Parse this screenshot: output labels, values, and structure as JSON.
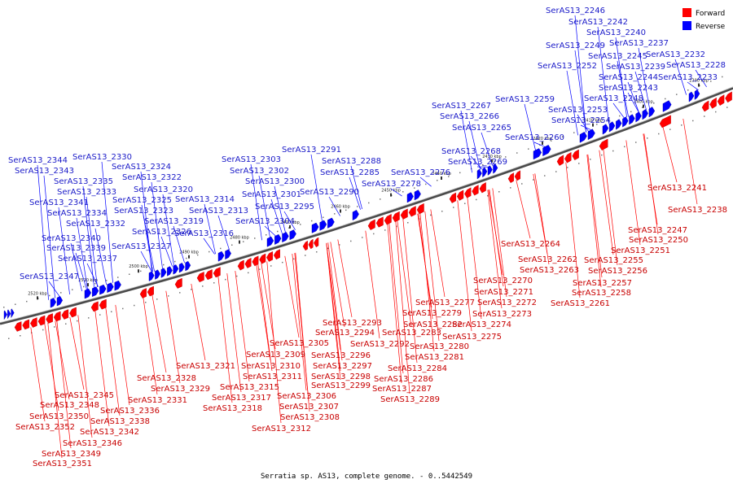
{
  "caption": "Serratia sp. AS13, complete genome. - 0..5442549",
  "legend": [
    {
      "label": "Forward",
      "color": "#ff0000"
    },
    {
      "label": "Reverse",
      "color": "#0000ff"
    }
  ],
  "ticks": [
    "2520 kbp",
    "2510 kbp",
    "2500 kbp",
    "2490 kbp",
    "2480 kbp",
    "2470 kbp",
    "2460 kbp",
    "2450 kbp",
    "2440 kbp",
    "2430 kbp",
    "2420 kbp",
    "2410 kbp",
    "2400 kbp",
    "2390 kbp"
  ],
  "reverse_labels": [
    "SerAS13_2246",
    "SerAS13_2242",
    "SerAS13_2240",
    "SerAS13_2237",
    "SerAS13_2249",
    "SerAS13_2232",
    "SerAS13_2245",
    "SerAS13_2252",
    "SerAS13_2239",
    "SerAS13_2228",
    "SerAS13_2244",
    "SerAS13_2233",
    "SerAS13_2243",
    "SerAS13_2259",
    "SerAS13_2248",
    "SerAS13_2267",
    "SerAS13_2253",
    "SerAS13_2266",
    "SerAS13_2254",
    "SerAS13_2265",
    "SerAS13_2260",
    "SerAS13_2268",
    "SerAS13_2269",
    "SerAS13_2276",
    "SerAS13_2278",
    "SerAS13_2291",
    "SerAS13_2288",
    "SerAS13_2285",
    "SerAS13_2290",
    "SerAS13_2303",
    "SerAS13_2302",
    "SerAS13_2300",
    "SerAS13_2301",
    "SerAS13_2295",
    "SerAS13_2304",
    "SerAS13_2330",
    "SerAS13_2324",
    "SerAS13_2322",
    "SerAS13_2320",
    "SerAS13_2325",
    "SerAS13_2314",
    "SerAS13_2323",
    "SerAS13_2313",
    "SerAS13_2319",
    "SerAS13_2326",
    "SerAS13_2316",
    "SerAS13_2327",
    "SerAS13_2344",
    "SerAS13_2343",
    "SerAS13_2335",
    "SerAS13_2333",
    "SerAS13_2341",
    "SerAS13_2334",
    "SerAS13_2332",
    "SerAS13_2340",
    "SerAS13_2339",
    "SerAS13_2337",
    "SerAS13_2347"
  ],
  "forward_labels": [
    "SerAS13_2241",
    "SerAS13_2238",
    "SerAS13_2247",
    "SerAS13_2250",
    "SerAS13_2251",
    "SerAS13_2264",
    "SerAS13_2255",
    "SerAS13_2262",
    "SerAS13_2256",
    "SerAS13_2263",
    "SerAS13_2257",
    "SerAS13_2258",
    "SerAS13_2261",
    "SerAS13_2270",
    "SerAS13_2271",
    "SerAS13_2272",
    "SerAS13_2277",
    "SerAS13_2273",
    "SerAS13_2279",
    "SerAS13_2274",
    "SerAS13_2282",
    "SerAS13_2275",
    "SerAS13_2293",
    "SerAS13_2283",
    "SerAS13_2280",
    "SerAS13_2294",
    "SerAS13_2281",
    "SerAS13_2292",
    "SerAS13_2284",
    "SerAS13_2305",
    "SerAS13_2296",
    "SerAS13_2309",
    "SerAS13_2297",
    "SerAS13_2286",
    "SerAS13_2310",
    "SerAS13_2298",
    "SerAS13_2287",
    "SerAS13_2311",
    "SerAS13_2299",
    "SerAS13_2289",
    "SerAS13_2321",
    "SerAS13_2315",
    "SerAS13_2306",
    "SerAS13_2328",
    "SerAS13_2317",
    "SerAS13_2307",
    "SerAS13_2329",
    "SerAS13_2318",
    "SerAS13_2308",
    "SerAS13_2345",
    "SerAS13_2331",
    "SerAS13_2312",
    "SerAS13_2348",
    "SerAS13_2336",
    "SerAS13_2350",
    "SerAS13_2338",
    "SerAS13_2352",
    "SerAS13_2342",
    "SerAS13_2346",
    "SerAS13_2349",
    "SerAS13_2351"
  ]
}
